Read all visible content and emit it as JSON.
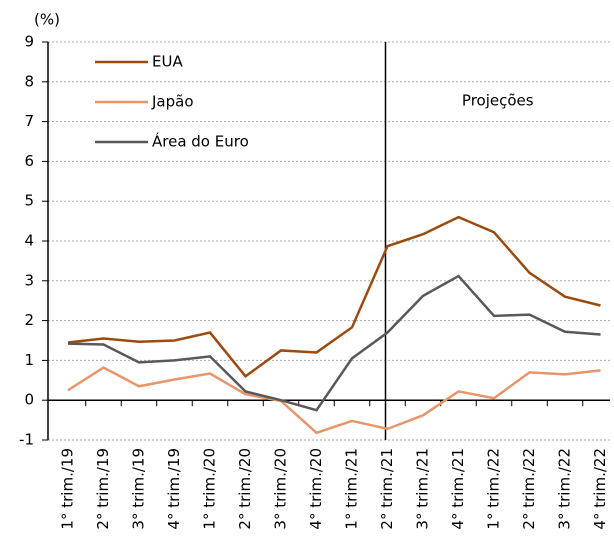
{
  "chart_data": {
    "type": "line",
    "y_label": "(%)",
    "categories": [
      "1° trim./19",
      "2° trim./19",
      "3° trim./19",
      "4° trim./19",
      "1° trim./20",
      "2° trim./20",
      "3° trim./20",
      "4° trim./20",
      "1° trim./21",
      "2° trim./21",
      "3° trim./21",
      "4° trim./21",
      "1° trim./22",
      "2° trim./22",
      "3° trim./22",
      "4° trim./22"
    ],
    "series": [
      {
        "name": "EUA",
        "color": "#9c4a0e",
        "values": [
          1.45,
          1.55,
          1.47,
          1.5,
          1.7,
          0.6,
          1.25,
          1.2,
          1.83,
          3.87,
          4.17,
          4.6,
          4.22,
          3.2,
          2.6,
          2.38
        ]
      },
      {
        "name": "Japão",
        "color": "#e8956a",
        "values": [
          0.25,
          0.82,
          0.35,
          0.52,
          0.67,
          0.15,
          -0.02,
          -0.82,
          -0.52,
          -0.72,
          -0.38,
          0.22,
          0.05,
          0.7,
          0.65,
          0.75
        ]
      },
      {
        "name": "Área do Euro",
        "color": "#595959",
        "values": [
          1.42,
          1.4,
          0.95,
          1.0,
          1.1,
          0.22,
          0.0,
          -0.25,
          1.05,
          1.7,
          2.62,
          3.12,
          2.12,
          2.15,
          1.72,
          1.65
        ]
      }
    ],
    "annotation": {
      "text": "Projeções",
      "category": "2° trim./21"
    },
    "ylim": [
      -1,
      9
    ],
    "yticks": [
      -1,
      0,
      1,
      2,
      3,
      4,
      5,
      6,
      7,
      8,
      9
    ],
    "grid": true,
    "legend": "top-left"
  }
}
